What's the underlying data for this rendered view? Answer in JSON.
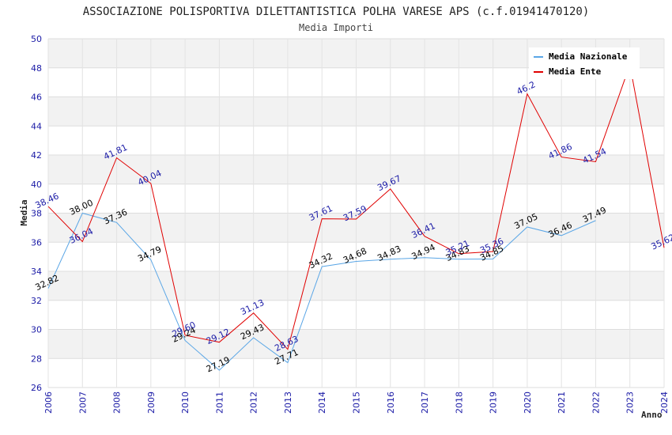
{
  "chart_data": {
    "type": "line",
    "title": "ASSOCIAZIONE POLISPORTIVA DILETTANTISTICA POLHA VARESE APS (c.f.01941470120)",
    "subtitle": "Media Importi",
    "xlabel": "Anno",
    "ylabel": "Media",
    "ylim": [
      26,
      50
    ],
    "y_ticks": [
      "26",
      "28",
      "30",
      "32",
      "34",
      "36",
      "38",
      "40",
      "42",
      "44",
      "46",
      "48",
      "50"
    ],
    "categories": [
      "2006",
      "2007",
      "2008",
      "2009",
      "2010",
      "2011",
      "2012",
      "2013",
      "2014",
      "2015",
      "2016",
      "2017",
      "2018",
      "2019",
      "2020",
      "2021",
      "2022",
      "2023",
      "2024"
    ],
    "legend_position": "top-right",
    "grid": true,
    "series": [
      {
        "name": "Media Nazionale",
        "color": "#5aa6e6",
        "label_color": "#000000",
        "values": [
          32.82,
          38.0,
          37.36,
          34.79,
          29.24,
          27.19,
          29.43,
          27.71,
          34.32,
          34.68,
          34.83,
          34.94,
          34.83,
          34.85,
          37.05,
          36.46,
          37.49,
          null,
          null
        ],
        "labels": [
          "32.82",
          "38.00",
          "37.36",
          "34.79",
          "29.24",
          "27.19",
          "29.43",
          "27.71",
          "34.32",
          "34.68",
          "34.83",
          "34.94",
          "34.83",
          "34.85",
          "37.05",
          "36.46",
          "37.49",
          null,
          null
        ]
      },
      {
        "name": "Media Ente",
        "color": "#e00000",
        "label_color": "#1a1aa6",
        "values": [
          38.46,
          36.04,
          41.81,
          40.04,
          29.6,
          29.12,
          31.13,
          28.63,
          37.61,
          37.59,
          39.67,
          36.41,
          35.21,
          35.36,
          46.21,
          41.86,
          41.54,
          48.2,
          35.62
        ],
        "labels": [
          "38.46",
          "36.04",
          "41.81",
          "40.04",
          "29.60",
          "29.12",
          "31.13",
          "28.63",
          "37.61",
          "37.59",
          "39.67",
          "36.41",
          "35.21",
          "35.36",
          "46.2",
          "41.86",
          "41.54",
          null,
          "35.62"
        ]
      }
    ]
  }
}
